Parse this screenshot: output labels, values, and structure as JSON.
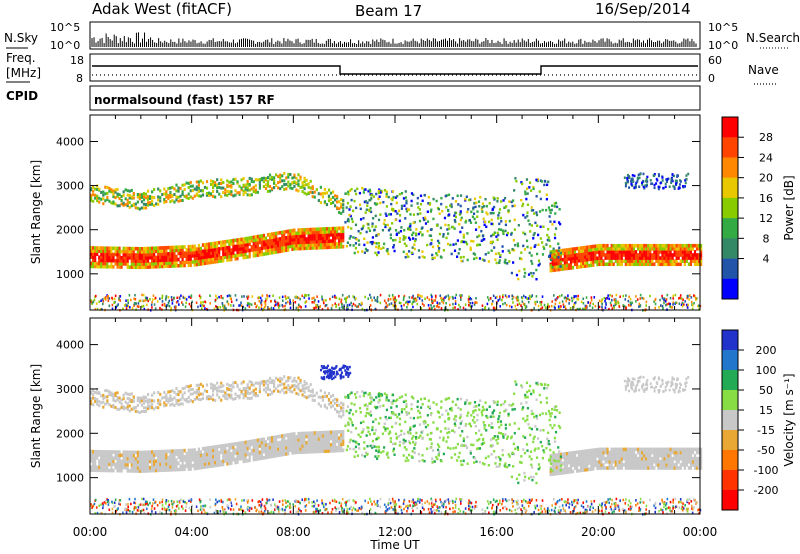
{
  "header": {
    "station": "Adak West (fitACF)",
    "beam": "Beam 17",
    "date": "16/Sep/2014"
  },
  "panels": {
    "nsky_label": "N.Sky",
    "nsearch_label": "N.Search",
    "nsky_ticks": [
      "10^5",
      "10^0"
    ],
    "nsearch_ticks": [
      "10^5",
      "10^0"
    ],
    "freq_label_1": "Freq.",
    "freq_label_2": "[MHz]",
    "freq_ticks": [
      "18",
      "8"
    ],
    "nave_label": "Nave",
    "nave_ticks": [
      "60",
      "0"
    ],
    "cpid_label": "CPID",
    "cpid_text": "normalsound (fast) 157 RF"
  },
  "chart_data": [
    {
      "type": "heatmap",
      "name": "power",
      "ylabel": "Slant Range [km]",
      "yticks": [
        "4000",
        "3000",
        "2000",
        "1000"
      ],
      "ylim": [
        180,
        4600
      ],
      "colorbar": {
        "label": "Power [dB]",
        "ticks": [
          "28",
          "24",
          "20",
          "16",
          "12",
          "8",
          "4"
        ],
        "colors": [
          "#ff0000",
          "#ff4400",
          "#ff8800",
          "#e8c800",
          "#88cc00",
          "#33aa44",
          "#338866",
          "#2255aa",
          "#0000ff"
        ]
      },
      "x": [
        "00:00",
        "02:00",
        "04:00",
        "06:00",
        "08:00",
        "10:00",
        "12:00",
        "14:00",
        "16:00",
        "18:00",
        "20:00",
        "22:00",
        "24:00"
      ],
      "band_main_center": [
        1350,
        1330,
        1380,
        1550,
        1750,
        1800,
        null,
        null,
        null,
        1250,
        1400,
        1400,
        1400
      ],
      "band_upper_center": [
        2800,
        2650,
        2900,
        2950,
        3100,
        2500,
        null,
        null,
        null,
        null,
        null,
        null,
        null
      ]
    },
    {
      "type": "heatmap",
      "name": "velocity",
      "ylabel": "Slant Range [km]",
      "yticks": [
        "4000",
        "3000",
        "2000",
        "1000"
      ],
      "ylim": [
        180,
        4600
      ],
      "colorbar": {
        "label": "Velocity [m s⁻¹]",
        "ticks": [
          "200",
          "100",
          "50",
          "15",
          "-15",
          "-50",
          "-100",
          "-200"
        ],
        "colors": [
          "#2233cc",
          "#2277cc",
          "#22aa55",
          "#88dd44",
          "#c8c8c8",
          "#e8a833",
          "#ff7700",
          "#ff3300",
          "#ff0000"
        ]
      },
      "xlabel": "Time UT",
      "xticks": [
        "00:00",
        "04:00",
        "08:00",
        "12:00",
        "16:00",
        "20:00",
        "00:00"
      ]
    }
  ],
  "colors": {
    "grey_scatter": "#c0c0b8"
  }
}
